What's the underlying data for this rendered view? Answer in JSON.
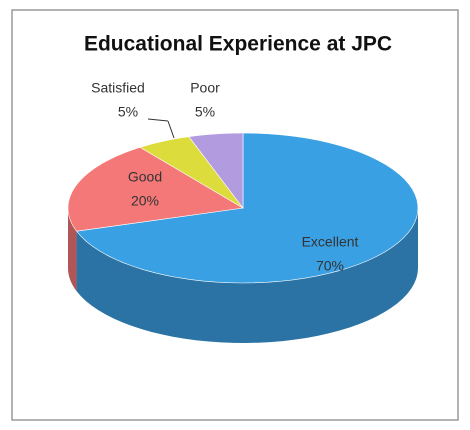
{
  "chart_data": {
    "type": "pie",
    "title": "Educational Experience at JPC",
    "categories": [
      "Excellent",
      "Good",
      "Satisfied",
      "Poor"
    ],
    "values": [
      70,
      20,
      5,
      5
    ],
    "value_labels": [
      "70%",
      "20%",
      "5%",
      "5%"
    ],
    "colors": [
      "#3aa0e4",
      "#f57878",
      "#dcdc3c",
      "#b39be0"
    ]
  }
}
